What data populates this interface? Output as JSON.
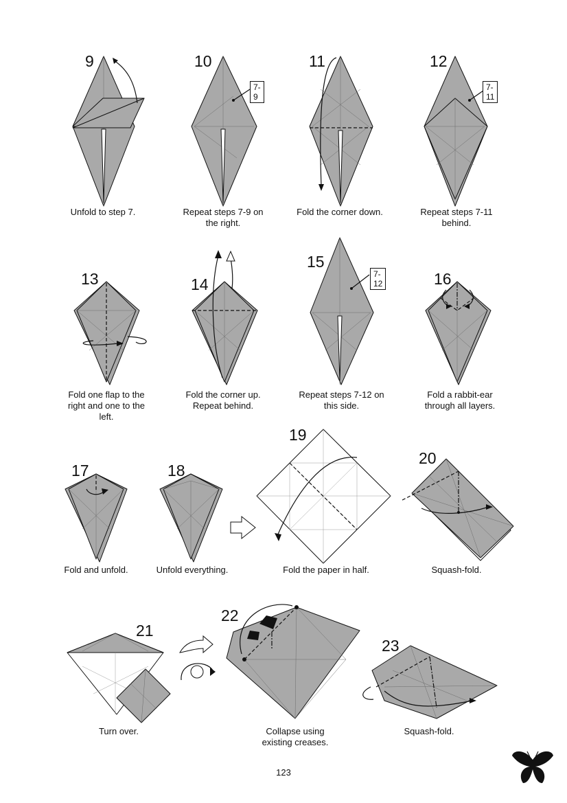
{
  "steps": [
    {
      "number": "9",
      "caption": "Unfold to step 7."
    },
    {
      "number": "10",
      "caption": "Repeat steps 7-9 on\nthe right.",
      "ref": "7-9"
    },
    {
      "number": "11",
      "caption": "Fold the corner down."
    },
    {
      "number": "12",
      "caption": "Repeat steps 7-11\nbehind.",
      "ref": "7-11"
    },
    {
      "number": "13",
      "caption": "Fold one flap to the\nright and one to the\nleft."
    },
    {
      "number": "14",
      "caption": "Fold the corner up.\nRepeat behind."
    },
    {
      "number": "15",
      "caption": "Repeat steps 7-12 on\nthis side.",
      "ref": "7-12"
    },
    {
      "number": "16",
      "caption": "Fold a rabbit-ear\nthrough all layers."
    },
    {
      "number": "17",
      "caption": "Fold and unfold."
    },
    {
      "number": "18",
      "caption": "Unfold everything."
    },
    {
      "number": "19",
      "caption": "Fold the paper in half."
    },
    {
      "number": "20",
      "caption": "Squash-fold."
    },
    {
      "number": "21",
      "caption": "Turn over."
    },
    {
      "number": "22",
      "caption": "Collapse using\nexisting creases."
    },
    {
      "number": "23",
      "caption": "Squash-fold."
    }
  ],
  "page_number": "123",
  "colors": {
    "paper_colored": "#a9a9a9",
    "paper_white": "#ffffff",
    "line": "#111111"
  },
  "icons": [
    "fold-arrow-icon",
    "turn-over-icon",
    "butterfly-logo-icon",
    "push-arrow-icon"
  ]
}
